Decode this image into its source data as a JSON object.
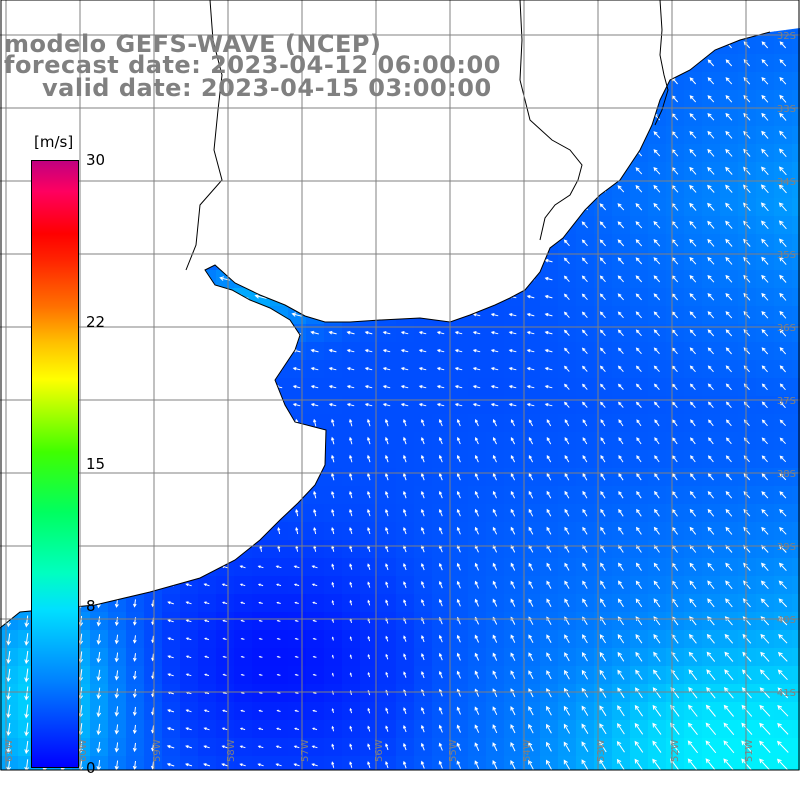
{
  "title": {
    "model": "modelo GEFS-WAVE (NCEP)",
    "forecast": "forecast date: 2023-04-12 06:00:00",
    "valid": "valid date: 2023-04-15 03:00:00"
  },
  "colorbar": {
    "unit": "[m/s]",
    "ticks": [
      "30",
      "22",
      "15",
      "8",
      "0"
    ],
    "tick_values": [
      30,
      22,
      15,
      8,
      0
    ],
    "colors": [
      "#0000ff",
      "#0080ff",
      "#00e0ff",
      "#00ff60",
      "#ffff00",
      "#ff7000",
      "#ff0000",
      "#c00080"
    ]
  },
  "map": {
    "lat_labels": [
      "32S",
      "33S",
      "34S",
      "35S",
      "36S",
      "37S",
      "38S",
      "39S",
      "40S",
      "41S"
    ],
    "lon_labels": [
      "61W",
      "60W",
      "59W",
      "58W",
      "57W",
      "56W",
      "55W",
      "54W",
      "53W",
      "52W",
      "51W"
    ],
    "land_color": "#ffffff",
    "grid_color": "#808080"
  }
}
